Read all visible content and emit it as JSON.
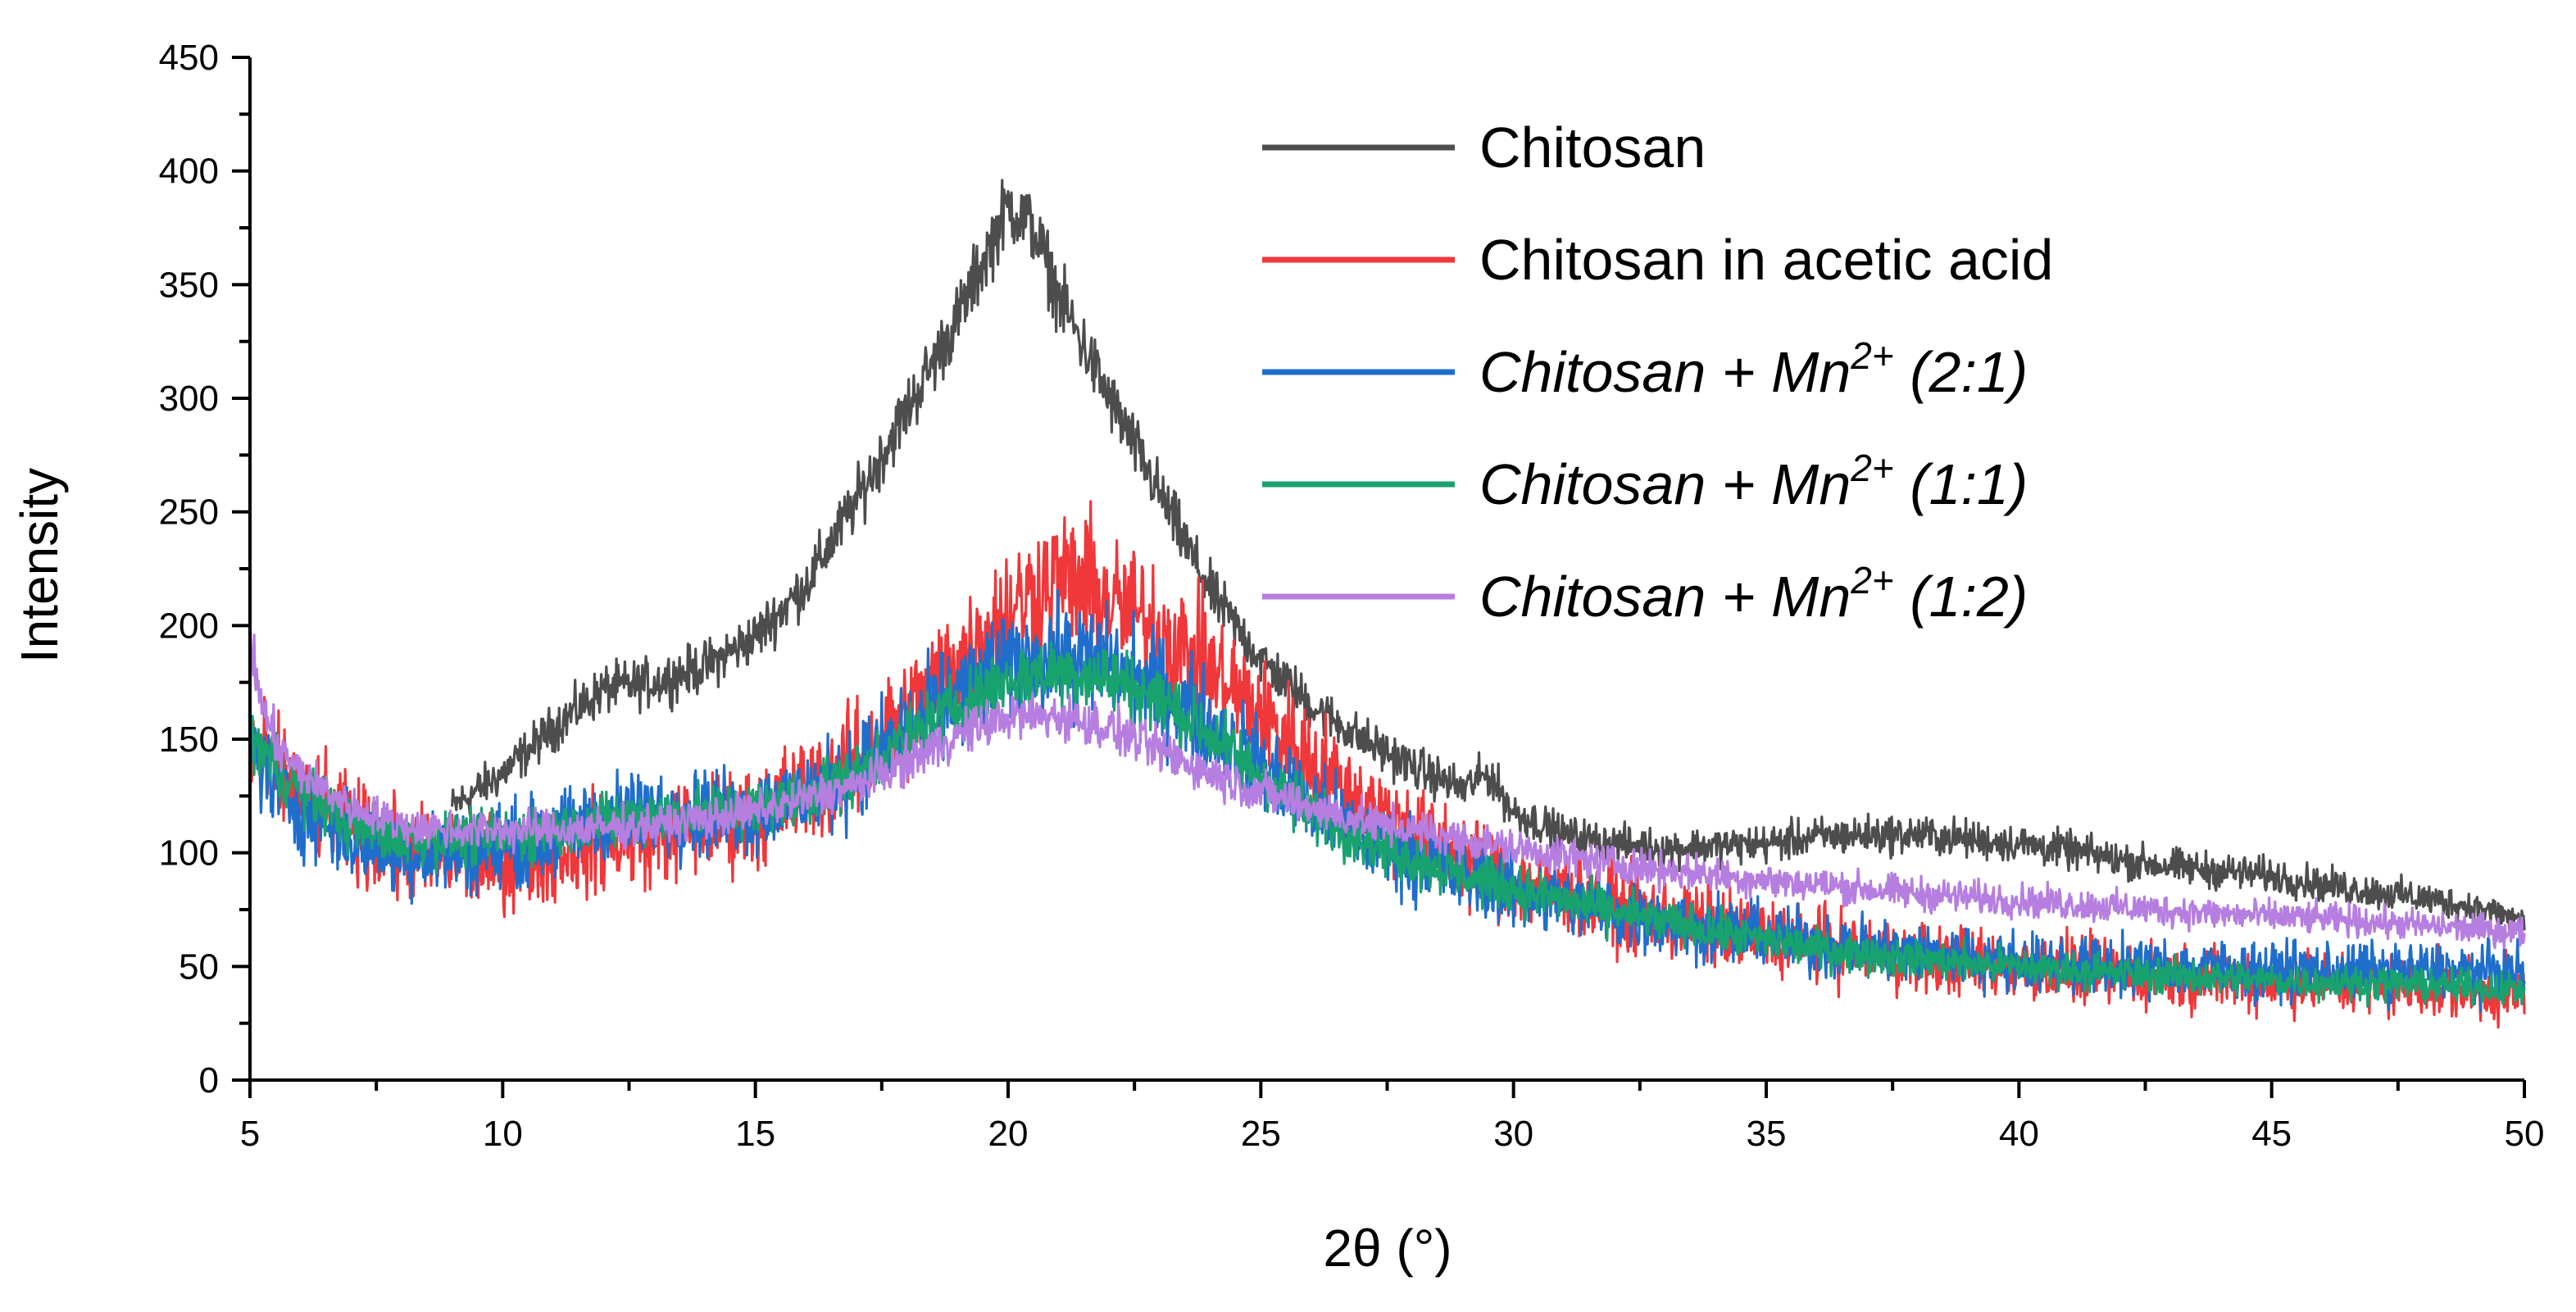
{
  "chart_data": {
    "type": "line",
    "title": "",
    "xlabel": "2θ (°)",
    "ylabel": "Intensity",
    "xlim": [
      5,
      50
    ],
    "ylim": [
      0,
      450
    ],
    "x_ticks": [
      5,
      10,
      15,
      20,
      25,
      30,
      35,
      40,
      45,
      50
    ],
    "y_ticks": [
      0,
      50,
      100,
      150,
      200,
      250,
      300,
      350,
      400,
      450
    ],
    "grid": false,
    "legend_position": "top-right",
    "series": [
      {
        "name": "Chitosan",
        "label_main": "Chitosan",
        "label_super": "",
        "label_tail": "",
        "italic": false,
        "color": "#4d4d4d",
        "noise": 5,
        "x": [
          9,
          10,
          11,
          12,
          13,
          14,
          15,
          16,
          17,
          18,
          19,
          19.5,
          20,
          20.5,
          21,
          22,
          23,
          24,
          25,
          26,
          27,
          28,
          29,
          29.5,
          30,
          31,
          32,
          33,
          34,
          35,
          36,
          37,
          38,
          39,
          40,
          41,
          42,
          43,
          44,
          45,
          46,
          47,
          48,
          49,
          50
        ],
        "y": [
          120,
          135,
          155,
          172,
          175,
          182,
          195,
          218,
          255,
          295,
          335,
          360,
          385,
          375,
          345,
          300,
          258,
          215,
          185,
          165,
          150,
          138,
          128,
          135,
          118,
          108,
          104,
          102,
          103,
          104,
          107,
          108,
          108,
          106,
          104,
          101,
          97,
          94,
          92,
          90,
          86,
          83,
          80,
          76,
          70
        ]
      },
      {
        "name": "Chitosan in acetic acid",
        "label_main": "Chitosan in acetic acid",
        "label_super": "",
        "label_tail": "",
        "italic": false,
        "color": "#f0373a",
        "noise": 13,
        "x": [
          5,
          5.5,
          6,
          7,
          8,
          9,
          10,
          11,
          12,
          13,
          14,
          15,
          16,
          17,
          18,
          19,
          20,
          20.5,
          21,
          21.5,
          22,
          23,
          24,
          25,
          26,
          27,
          28,
          29,
          30,
          32,
          34,
          36,
          38,
          40,
          42,
          44,
          46,
          48,
          50
        ],
        "y": [
          150,
          135,
          125,
          110,
          100,
          97,
          96,
          100,
          105,
          108,
          112,
          116,
          128,
          140,
          160,
          185,
          205,
          215,
          220,
          218,
          210,
          198,
          180,
          160,
          140,
          122,
          108,
          98,
          88,
          76,
          67,
          60,
          54,
          50,
          47,
          45,
          43,
          41,
          38
        ]
      },
      {
        "name": "Chitosan + Mn2+ (2:1)",
        "label_main": "Chitosan + Mn",
        "label_super": "2+",
        "label_tail": " (2:1)",
        "italic": true,
        "color": "#1f6ecc",
        "noise": 11,
        "x": [
          5,
          5.5,
          6,
          7,
          8,
          9,
          10,
          11,
          12,
          13,
          14,
          15,
          16,
          17,
          18,
          19,
          20,
          21,
          22,
          23,
          24,
          25,
          26,
          27,
          28,
          29,
          30,
          32,
          34,
          36,
          38,
          40,
          42,
          44,
          46,
          48,
          50
        ],
        "y": [
          148,
          130,
          120,
          106,
          100,
          100,
          103,
          108,
          115,
          118,
          118,
          118,
          125,
          137,
          153,
          170,
          182,
          186,
          183,
          172,
          155,
          138,
          120,
          108,
          98,
          90,
          84,
          74,
          66,
          60,
          56,
          52,
          50,
          49,
          48,
          48,
          47
        ]
      },
      {
        "name": "Chitosan + Mn2+ (1:1)",
        "label_main": "Chitosan + Mn",
        "label_super": "2+",
        "label_tail": " (1:1)",
        "italic": true,
        "color": "#18a36e",
        "noise": 7,
        "x": [
          5,
          5.5,
          6,
          7,
          8,
          9,
          10,
          11,
          12,
          13,
          14,
          15,
          16,
          17,
          18,
          19,
          20,
          21,
          22,
          23,
          24,
          25,
          26,
          27,
          28,
          29,
          30,
          32,
          34,
          36,
          38,
          40,
          42,
          44,
          46,
          48,
          50
        ],
        "y": [
          152,
          138,
          128,
          112,
          106,
          106,
          107,
          110,
          114,
          117,
          118,
          120,
          126,
          135,
          150,
          165,
          176,
          180,
          177,
          168,
          152,
          134,
          118,
          106,
          97,
          90,
          84,
          74,
          65,
          58,
          53,
          50,
          47,
          45,
          43,
          42,
          40
        ]
      },
      {
        "name": "Chitosan + Mn2+ (1:2)",
        "label_main": "Chitosan + Mn",
        "label_super": "2+",
        "label_tail": " (1:2)",
        "italic": true,
        "color": "#b67ee0",
        "noise": 5,
        "x": [
          5,
          5.3,
          5.6,
          6,
          7,
          8,
          9,
          10,
          11,
          12,
          13,
          14,
          15,
          16,
          17,
          18,
          19,
          20,
          21,
          22,
          23,
          24,
          25,
          26,
          27,
          28,
          29,
          30,
          32,
          34,
          36,
          38,
          40,
          42,
          44,
          46,
          48,
          50
        ],
        "y": [
          190,
          160,
          145,
          135,
          120,
          112,
          110,
          110,
          110,
          111,
          112,
          115,
          118,
          124,
          130,
          140,
          152,
          160,
          160,
          155,
          145,
          135,
          127,
          120,
          114,
          110,
          106,
          102,
          95,
          90,
          86,
          82,
          79,
          76,
          73,
          71,
          68,
          65
        ]
      }
    ]
  }
}
